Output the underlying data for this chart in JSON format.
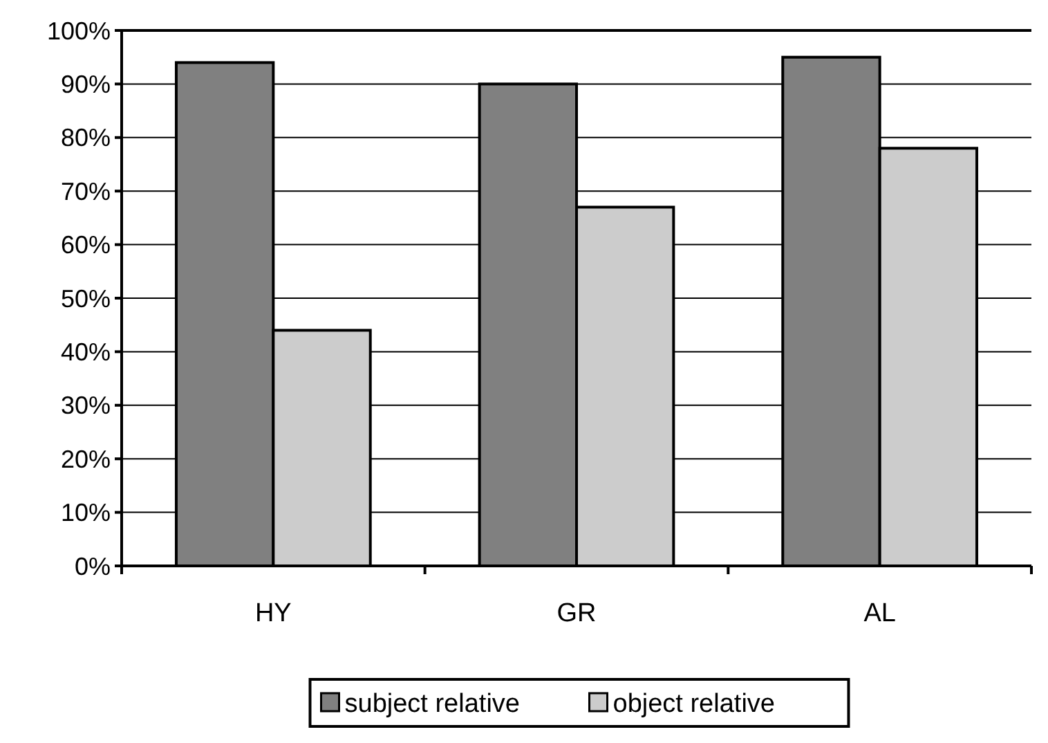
{
  "chart_data": {
    "type": "bar",
    "categories": [
      "HY",
      "GR",
      "AL"
    ],
    "series": [
      {
        "name": "subject relative",
        "color": "#808080",
        "values": [
          94,
          90,
          95
        ]
      },
      {
        "name": "object relative",
        "color": "#cccccc",
        "values": [
          44,
          67,
          78
        ]
      }
    ],
    "ylim": [
      0,
      100
    ],
    "yticks": [
      {
        "value": 0,
        "label": "0%"
      },
      {
        "value": 10,
        "label": "10%"
      },
      {
        "value": 20,
        "label": "20%"
      },
      {
        "value": 30,
        "label": "30%"
      },
      {
        "value": 40,
        "label": "40%"
      },
      {
        "value": 50,
        "label": "50%"
      },
      {
        "value": 60,
        "label": "60%"
      },
      {
        "value": 70,
        "label": "70%"
      },
      {
        "value": 80,
        "label": "80%"
      },
      {
        "value": 90,
        "label": "90%"
      },
      {
        "value": 100,
        "label": "100%"
      }
    ],
    "grid": "y",
    "legend": "bottom"
  }
}
